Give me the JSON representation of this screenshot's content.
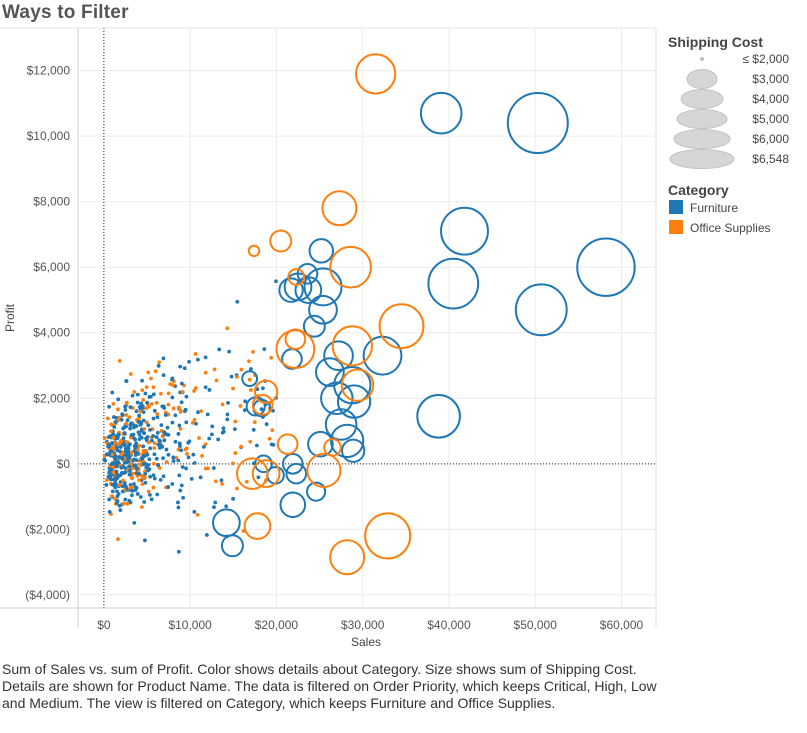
{
  "title": "Ways to Filter",
  "caption": "Sum of Sales vs. sum of Profit.  Color shows details about Category.  Size shows sum of Shipping Cost.  Details are shown for Product Name. The data is filtered on Order Priority, which keeps Critical, High, Low and Medium. The view is filtered on Category, which keeps Furniture and Office Supplies.",
  "chart_data": {
    "type": "scatter",
    "xlabel": "Sales",
    "ylabel": "Profit",
    "xlim": [
      -3000,
      64000
    ],
    "ylim": [
      -4400,
      13300
    ],
    "x_ticks": [
      0,
      10000,
      20000,
      30000,
      40000,
      50000,
      60000
    ],
    "x_tick_labels": [
      "$0",
      "$10,000",
      "$20,000",
      "$30,000",
      "$40,000",
      "$50,000",
      "$60,000"
    ],
    "y_ticks": [
      -4000,
      -2000,
      0,
      2000,
      4000,
      6000,
      8000,
      10000,
      12000
    ],
    "y_tick_labels": [
      "($4,000)",
      "($2,000)",
      "$0",
      "$2,000",
      "$4,000",
      "$6,000",
      "$8,000",
      "$10,000",
      "$12,000"
    ],
    "grid": true,
    "zero_lines": true,
    "size_legend": {
      "title": "Shipping Cost",
      "items": [
        {
          "label": "≤ $2,000",
          "value": 2000
        },
        {
          "label": "$3,000",
          "value": 3000
        },
        {
          "label": "$4,000",
          "value": 4000
        },
        {
          "label": "$5,000",
          "value": 5000
        },
        {
          "label": "$6,000",
          "value": 6000
        },
        {
          "label": "$6,548",
          "value": 6548
        }
      ]
    },
    "color_legend": {
      "title": "Category",
      "items": [
        {
          "label": "Furniture",
          "color": "#1f77b4"
        },
        {
          "label": "Office Supplies",
          "color": "#ff7f0e"
        }
      ]
    },
    "series": [
      {
        "name": "Furniture",
        "color": "#1f77b4",
        "points": [
          {
            "x": 50300,
            "y": 10400,
            "s": 6548
          },
          {
            "x": 58200,
            "y": 6000,
            "s": 6000
          },
          {
            "x": 50700,
            "y": 4700,
            "s": 4700
          },
          {
            "x": 40500,
            "y": 5500,
            "s": 4500
          },
          {
            "x": 41800,
            "y": 7100,
            "s": 4000
          },
          {
            "x": 39100,
            "y": 10700,
            "s": 3000
          },
          {
            "x": 38800,
            "y": 1450,
            "s": 3300
          },
          {
            "x": 32300,
            "y": 3300,
            "s": 2600
          },
          {
            "x": 25400,
            "y": 5400,
            "s": 2500
          },
          {
            "x": 28800,
            "y": 2400,
            "s": 2400
          },
          {
            "x": 29000,
            "y": 1900,
            "s": 1900
          },
          {
            "x": 27500,
            "y": 1200,
            "s": 1700
          },
          {
            "x": 28200,
            "y": 700,
            "s": 1900
          },
          {
            "x": 27000,
            "y": 2000,
            "s": 1800
          },
          {
            "x": 26200,
            "y": 2800,
            "s": 1400
          },
          {
            "x": 27200,
            "y": 3300,
            "s": 1500
          },
          {
            "x": 25400,
            "y": 4700,
            "s": 1400
          },
          {
            "x": 22500,
            "y": 5400,
            "s": 1300
          },
          {
            "x": 23700,
            "y": 5300,
            "s": 1200
          },
          {
            "x": 21700,
            "y": 5300,
            "s": 1000
          },
          {
            "x": 25200,
            "y": 6500,
            "s": 1000
          },
          {
            "x": 23600,
            "y": 5800,
            "s": 700
          },
          {
            "x": 24400,
            "y": 4200,
            "s": 800
          },
          {
            "x": 21800,
            "y": 3200,
            "s": 700
          },
          {
            "x": 28900,
            "y": 400,
            "s": 900
          },
          {
            "x": 25100,
            "y": 600,
            "s": 1100
          },
          {
            "x": 21900,
            "y": -1250,
            "s": 1100
          },
          {
            "x": 14200,
            "y": -1800,
            "s": 1300
          },
          {
            "x": 14900,
            "y": -2500,
            "s": 800
          },
          {
            "x": 22300,
            "y": -300,
            "s": 700
          },
          {
            "x": 21900,
            "y": 0,
            "s": 700
          },
          {
            "x": 24600,
            "y": -850,
            "s": 600
          },
          {
            "x": 18500,
            "y": 0,
            "s": 500
          },
          {
            "x": 19900,
            "y": -350,
            "s": 500
          },
          {
            "x": 17600,
            "y": 1750,
            "s": 600
          },
          {
            "x": 18300,
            "y": 1700,
            "s": 500
          },
          {
            "x": 16900,
            "y": 2600,
            "s": 400
          }
        ]
      },
      {
        "name": "Office Supplies",
        "color": "#ff7f0e",
        "points": [
          {
            "x": 31500,
            "y": 11900,
            "s": 2800
          },
          {
            "x": 34500,
            "y": 4200,
            "s": 3500
          },
          {
            "x": 32900,
            "y": -2200,
            "s": 3700
          },
          {
            "x": 28600,
            "y": 6000,
            "s": 3000
          },
          {
            "x": 28800,
            "y": 3600,
            "s": 2800
          },
          {
            "x": 22200,
            "y": 3500,
            "s": 2600
          },
          {
            "x": 27300,
            "y": 7800,
            "s": 2100
          },
          {
            "x": 28200,
            "y": -2850,
            "s": 2100
          },
          {
            "x": 25500,
            "y": -200,
            "s": 2000
          },
          {
            "x": 29400,
            "y": 2400,
            "s": 1800
          },
          {
            "x": 17200,
            "y": -300,
            "s": 1700
          },
          {
            "x": 17800,
            "y": -1900,
            "s": 1200
          },
          {
            "x": 18800,
            "y": -300,
            "s": 1300
          },
          {
            "x": 20500,
            "y": 6800,
            "s": 800
          },
          {
            "x": 22200,
            "y": 3800,
            "s": 700
          },
          {
            "x": 21300,
            "y": 600,
            "s": 700
          },
          {
            "x": 18400,
            "y": 1800,
            "s": 700
          },
          {
            "x": 18800,
            "y": 2200,
            "s": 900
          },
          {
            "x": 22300,
            "y": 5700,
            "s": 450
          },
          {
            "x": 26500,
            "y": 500,
            "s": 500
          },
          {
            "x": 17400,
            "y": 6500,
            "s": 200
          }
        ]
      }
    ]
  }
}
